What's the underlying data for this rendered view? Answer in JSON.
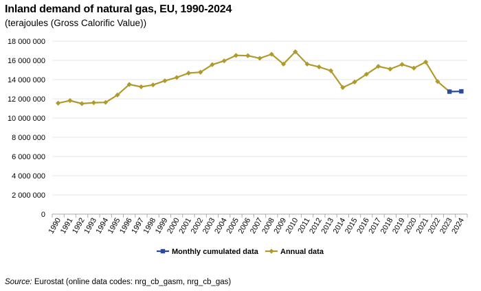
{
  "header": {
    "title": "Inland demand of natural gas, EU, 1990-2024",
    "subtitle": "(terajoules (Gross Calorific Value))"
  },
  "footer": {
    "source_label": "Source:",
    "source_text": " Eurostat (online data codes: nrg_cb_gasm, nrg_cb_gas)"
  },
  "colors": {
    "annual": "#B09A2B",
    "monthly": "#2A4BA0",
    "grid": "#e6e6e6",
    "axis": "#aaaaaa"
  },
  "chart_data": {
    "type": "line",
    "title": "Inland demand of natural gas, EU, 1990-2024",
    "subtitle": "(terajoules (Gross Calorific Value))",
    "xlabel": "",
    "ylabel": "",
    "ylim": [
      0,
      18000000
    ],
    "yticks": [
      0,
      2000000,
      4000000,
      6000000,
      8000000,
      10000000,
      12000000,
      14000000,
      16000000,
      18000000
    ],
    "ytick_labels": [
      "0",
      "2 000 000",
      "4 000 000",
      "6 000 000",
      "8 000 000",
      "10 000 000",
      "12 000 000",
      "14 000 000",
      "16 000 000",
      "18 000 000"
    ],
    "grid": true,
    "legend_position": "bottom-center",
    "categories": [
      "1990",
      "1991",
      "1992",
      "1993",
      "1994",
      "1995",
      "1996",
      "1997",
      "1998",
      "1999",
      "2000",
      "2001",
      "2002",
      "2003",
      "2004",
      "2005",
      "2006",
      "2007",
      "2008",
      "2009",
      "2010",
      "2011",
      "2012",
      "2013",
      "2014",
      "2015",
      "2016",
      "2017",
      "2018",
      "2019",
      "2020",
      "2021",
      "2022",
      "2023",
      "2024"
    ],
    "series": [
      {
        "name": "Monthly cumulated data",
        "marker": "square",
        "values": [
          null,
          null,
          null,
          null,
          null,
          null,
          null,
          null,
          null,
          null,
          null,
          null,
          null,
          null,
          null,
          null,
          null,
          null,
          null,
          null,
          null,
          null,
          null,
          null,
          null,
          null,
          null,
          null,
          null,
          null,
          null,
          null,
          null,
          12750000,
          12780000
        ]
      },
      {
        "name": "Annual data",
        "marker": "diamond",
        "values": [
          11550000,
          11820000,
          11500000,
          11600000,
          11630000,
          12400000,
          13500000,
          13250000,
          13450000,
          13880000,
          14220000,
          14680000,
          14770000,
          15560000,
          15950000,
          16520000,
          16490000,
          16220000,
          16640000,
          15620000,
          16900000,
          15620000,
          15320000,
          14920000,
          13180000,
          13750000,
          14560000,
          15380000,
          15100000,
          15580000,
          15200000,
          15830000,
          13800000,
          12750000,
          null
        ]
      }
    ]
  }
}
